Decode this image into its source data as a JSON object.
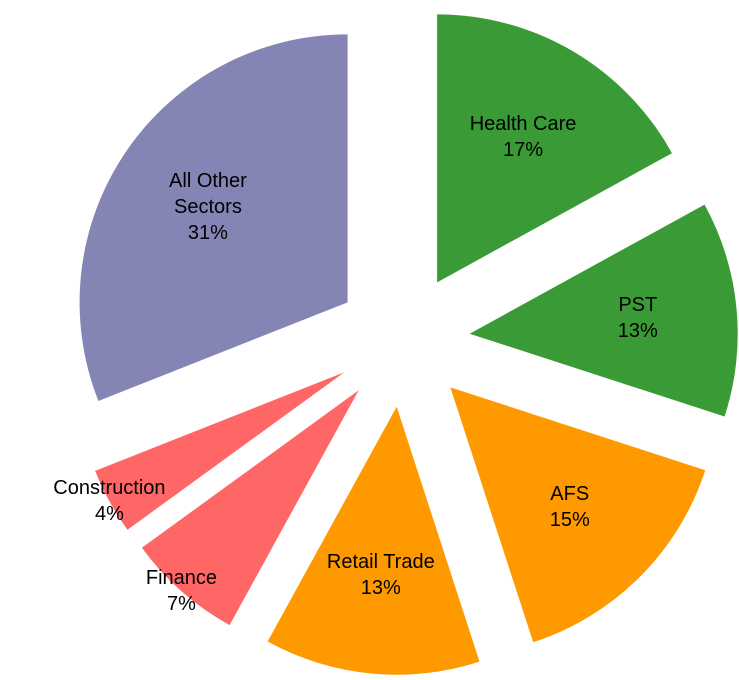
{
  "chart_data": {
    "type": "pie",
    "categories": [
      "Health Care",
      "PST",
      "AFS",
      "Retail Trade",
      "Finance",
      "Construction",
      "All Other Sectors"
    ],
    "values": [
      17,
      13,
      15,
      13,
      7,
      4,
      31
    ],
    "value_labels": [
      "17%",
      "13%",
      "15%",
      "13%",
      "7%",
      "4%",
      "31%"
    ],
    "colors": [
      "#3a9a35",
      "#3a9a35",
      "#ff9900",
      "#ff9900",
      "#ff6666",
      "#ff6666",
      "#8585b5"
    ]
  }
}
